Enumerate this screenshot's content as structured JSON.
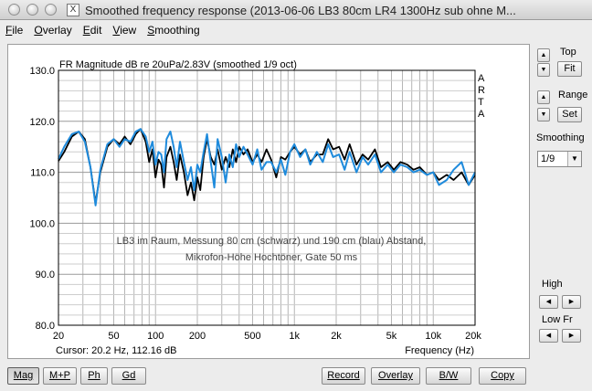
{
  "window": {
    "title": "Smoothed frequency response (2013-06-06 LB3 80cm LR4 1300Hz sub ohne M...",
    "app_icon_glyph": "X"
  },
  "menu": [
    "File",
    "Overlay",
    "Edit",
    "View",
    "Smoothing"
  ],
  "plot": {
    "title": "FR Magnitude dB re 20uPa/2.83V (smoothed 1/9 oct)",
    "arta_letters": [
      "A",
      "R",
      "T",
      "A"
    ],
    "annotation_line1": "LB3 im Raum, Messung 80 cm (schwarz) und 190 cm (blau) Abstand,",
    "annotation_line2": "Mikrofon-Höhe Hochtöner, Gate 50 ms",
    "cursor_readout": "Cursor: 20.2 Hz, 112.16 dB",
    "xlabel": "Frequency (Hz)"
  },
  "chart_data": {
    "type": "line",
    "title": "FR Magnitude dB re 20uPa/2.83V (smoothed 1/9 oct)",
    "xlabel": "Frequency (Hz)",
    "ylabel": "",
    "x_scale": "log",
    "xlim": [
      20,
      20000
    ],
    "ylim": [
      80,
      130
    ],
    "grid": true,
    "y_ticks": [
      "130.0",
      "120.0",
      "110.0",
      "100.0",
      "90.0",
      "80.0"
    ],
    "y_tick_values": [
      130,
      120,
      110,
      100,
      90,
      80
    ],
    "x_ticks": [
      "20",
      "50",
      "100",
      "200",
      "500",
      "1k",
      "2k",
      "5k",
      "10k",
      "20k"
    ],
    "x_tick_values": [
      20,
      50,
      100,
      200,
      500,
      1000,
      2000,
      5000,
      10000,
      20000
    ],
    "series": [
      {
        "color": "#000000",
        "x": [
          20,
          22,
          25,
          28,
          31,
          34,
          37,
          40,
          45,
          50,
          55,
          60,
          66,
          72,
          78,
          85,
          90,
          95,
          100,
          105,
          110,
          115,
          120,
          128,
          135,
          142,
          150,
          160,
          170,
          180,
          190,
          200,
          210,
          222,
          235,
          250,
          265,
          280,
          300,
          320,
          340,
          360,
          380,
          400,
          430,
          460,
          500,
          540,
          580,
          630,
          680,
          740,
          800,
          860,
          930,
          1000,
          1100,
          1200,
          1300,
          1450,
          1600,
          1750,
          1900,
          2100,
          2300,
          2500,
          2800,
          3100,
          3400,
          3800,
          4200,
          4700,
          5200,
          5800,
          6500,
          7200,
          8000,
          9000,
          10000,
          11000,
          12500,
          14000,
          16000,
          18000,
          20000
        ],
        "y": [
          112.2,
          114,
          117,
          118,
          116.5,
          111,
          104,
          110,
          115,
          116.5,
          115.5,
          117,
          115.5,
          117.5,
          118.5,
          116,
          112,
          114.5,
          109,
          112.5,
          111.5,
          107,
          113,
          115,
          112,
          108.5,
          113.5,
          110,
          105.5,
          108,
          104.5,
          109,
          106.5,
          113,
          116.5,
          113,
          111.5,
          114.5,
          110.5,
          113,
          111,
          114.5,
          112,
          115,
          113.5,
          114.5,
          112,
          113.5,
          112,
          114.5,
          112.5,
          109,
          113,
          112.5,
          114,
          115,
          113.5,
          114.5,
          112,
          113.5,
          113.5,
          116.5,
          114.5,
          115,
          112.5,
          115.5,
          111.5,
          113.5,
          112.5,
          114.5,
          111,
          112,
          110.5,
          112,
          111.5,
          110.5,
          111,
          109.5,
          110,
          108.5,
          109.5,
          108.5,
          110,
          107.5,
          109.5
        ]
      },
      {
        "color": "#1f8bdc",
        "x": [
          20,
          22,
          25,
          28,
          31,
          34,
          37,
          40,
          45,
          50,
          55,
          60,
          66,
          72,
          78,
          85,
          90,
          95,
          100,
          105,
          110,
          115,
          120,
          128,
          135,
          142,
          150,
          160,
          170,
          180,
          190,
          200,
          210,
          222,
          235,
          250,
          265,
          280,
          300,
          320,
          340,
          360,
          380,
          400,
          430,
          460,
          500,
          540,
          580,
          630,
          680,
          740,
          800,
          860,
          930,
          1000,
          1100,
          1200,
          1300,
          1450,
          1600,
          1750,
          1900,
          2100,
          2300,
          2500,
          2800,
          3100,
          3400,
          3800,
          4200,
          4700,
          5200,
          5800,
          6500,
          7200,
          8000,
          9000,
          10000,
          11000,
          12500,
          14000,
          16000,
          18000,
          20000
        ],
        "y": [
          112.6,
          115,
          117.5,
          118,
          116,
          111,
          103.5,
          110.5,
          115.5,
          116.5,
          115,
          116.5,
          116,
          118,
          118.5,
          117,
          114,
          116,
          111.5,
          114,
          113.5,
          110,
          116.5,
          118,
          115,
          111,
          116,
          112,
          108.5,
          111,
          106.5,
          111.5,
          110,
          114,
          117.5,
          112,
          107,
          116.5,
          113,
          108,
          113.5,
          111,
          115.5,
          113,
          115,
          113.5,
          111.5,
          114.5,
          110.5,
          112,
          112,
          110,
          112.5,
          109.5,
          114,
          115.5,
          113,
          114.5,
          111.5,
          114,
          112,
          115.5,
          113,
          113.5,
          110.5,
          114,
          110,
          113,
          111.5,
          113.5,
          110,
          111.5,
          110,
          111.5,
          111,
          110,
          110.5,
          109.5,
          110,
          107.5,
          108.5,
          110.5,
          112,
          107.5,
          110
        ]
      }
    ]
  },
  "right_panel": {
    "top_label": "Top",
    "fit_label": "Fit",
    "range_label": "Range",
    "set_label": "Set",
    "smoothing_label": "Smoothing",
    "smoothing_value": "1/9",
    "high_label": "High",
    "low_label": "Low Fr",
    "up_glyph": "▲",
    "down_glyph": "▼",
    "left_glyph": "◀",
    "right_glyph": "▶"
  },
  "bottom_bar": {
    "left": [
      {
        "name": "mag-button",
        "label": "Mag",
        "active": true
      },
      {
        "name": "mp-button",
        "label": "M+P",
        "active": false
      },
      {
        "name": "ph-button",
        "label": "Ph",
        "active": false
      },
      {
        "name": "gd-button",
        "label": "Gd",
        "active": false
      }
    ],
    "right": [
      {
        "name": "record-button",
        "label": "Record"
      },
      {
        "name": "overlay-button",
        "label": "Overlay"
      },
      {
        "name": "bw-button",
        "label": "B/W"
      },
      {
        "name": "copy-button",
        "label": "Copy"
      }
    ]
  }
}
